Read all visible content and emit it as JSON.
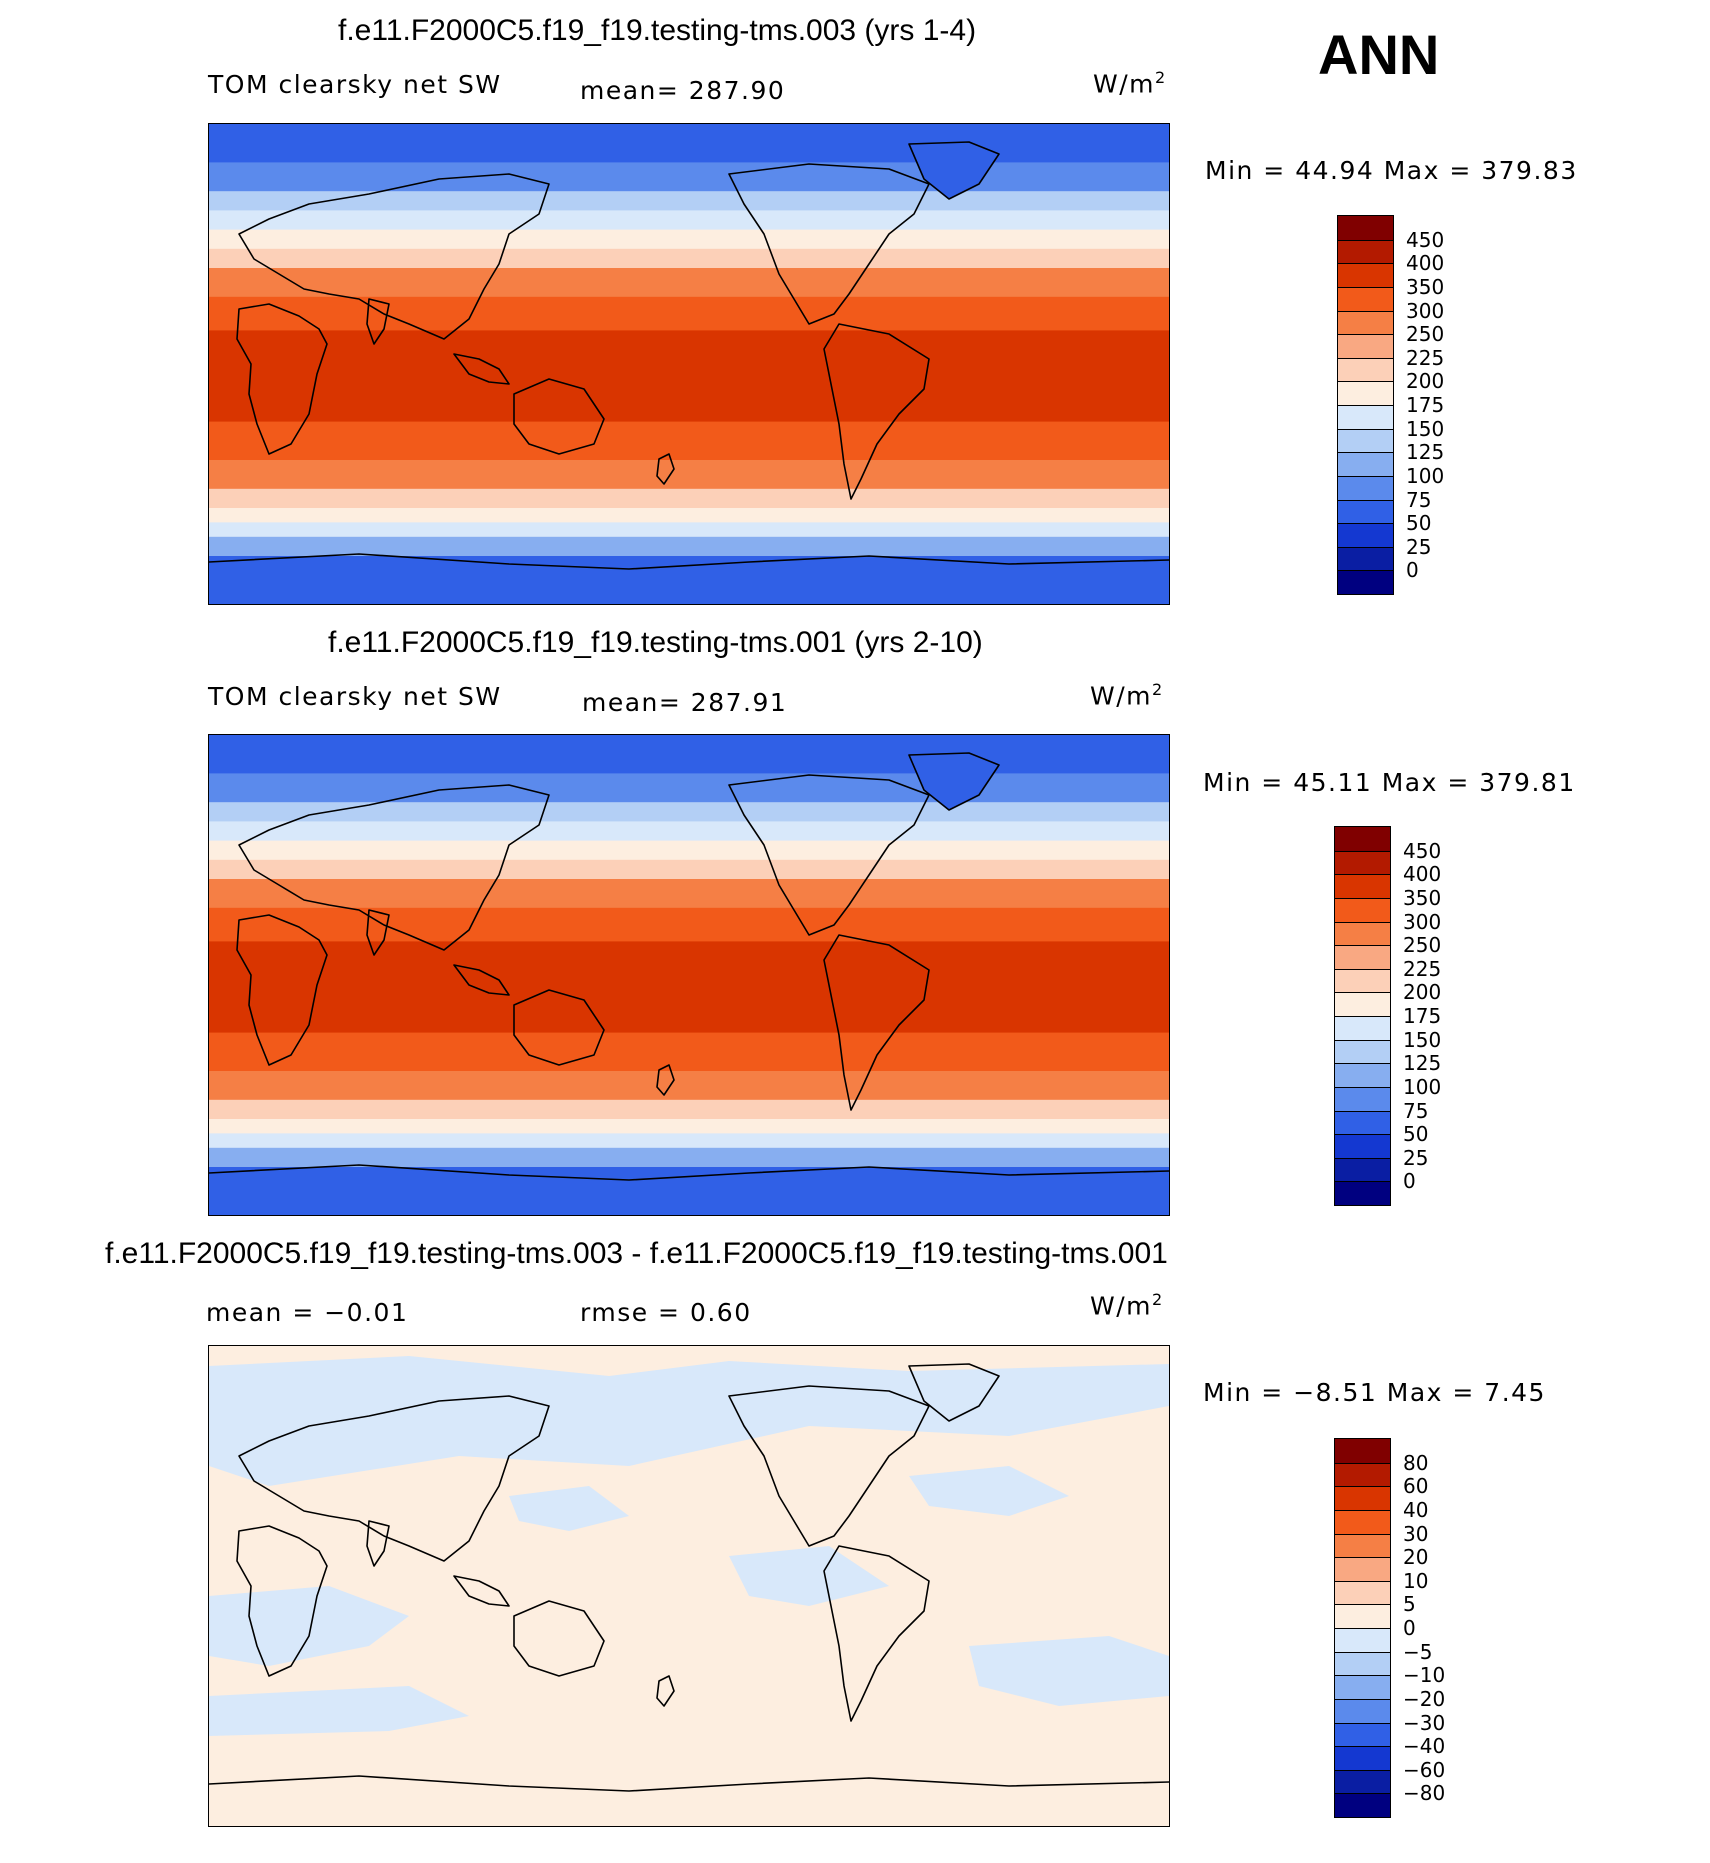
{
  "season": "ANN",
  "panels": [
    {
      "id": "test",
      "case_title": "f.e11.F2000C5.f19_f19.testing-tms.003 (yrs 1-4)",
      "left_label": "TOM clearsky net SW",
      "center_label": "mean= 287.90",
      "units": "W/m",
      "units_sup": "2",
      "minmax": "Min =   44.94  Max  =  379.83",
      "map_type": "abs"
    },
    {
      "id": "ctrl",
      "case_title": "f.e11.F2000C5.f19_f19.testing-tms.001 (yrs 2-10)",
      "left_label": "TOM clearsky net SW",
      "center_label": "mean= 287.91",
      "units": "W/m",
      "units_sup": "2",
      "minmax": "Min =   45.11  Max  =  379.81",
      "map_type": "abs"
    },
    {
      "id": "diff",
      "case_title": "f.e11.F2000C5.f19_f19.testing-tms.003 - f.e11.F2000C5.f19_f19.testing-tms.001",
      "left_label": "mean =   −0.01",
      "center_label": "rmse =    0.60",
      "units": "W/m",
      "units_sup": "2",
      "minmax": "Min =   −8.51  Max =     7.45",
      "map_type": "diff"
    }
  ],
  "colorbars": {
    "abs": {
      "labels": [
        "450",
        "400",
        "350",
        "300",
        "250",
        "225",
        "200",
        "175",
        "150",
        "125",
        "100",
        "75",
        "50",
        "25",
        "0"
      ],
      "colors": [
        "#800000",
        "#b31a00",
        "#d93500",
        "#f25a1a",
        "#f57f45",
        "#f9a882",
        "#fcd0b8",
        "#fdeee0",
        "#d8e8fa",
        "#b3cff5",
        "#87aef0",
        "#5b8aec",
        "#3060e6",
        "#1438d1",
        "#0a1ea3",
        "#000080"
      ]
    },
    "diff": {
      "labels": [
        "80",
        "60",
        "40",
        "30",
        "20",
        "10",
        "5",
        "0",
        "−5",
        "−10",
        "−20",
        "−30",
        "−40",
        "−60",
        "−80"
      ],
      "colors": [
        "#800000",
        "#b31a00",
        "#d93500",
        "#f25a1a",
        "#f57f45",
        "#f9a882",
        "#fcd0b8",
        "#fdeee0",
        "#d8e8fa",
        "#b3cff5",
        "#87aef0",
        "#5b8aec",
        "#3060e6",
        "#1438d1",
        "#0a1ea3",
        "#000080"
      ]
    }
  }
}
